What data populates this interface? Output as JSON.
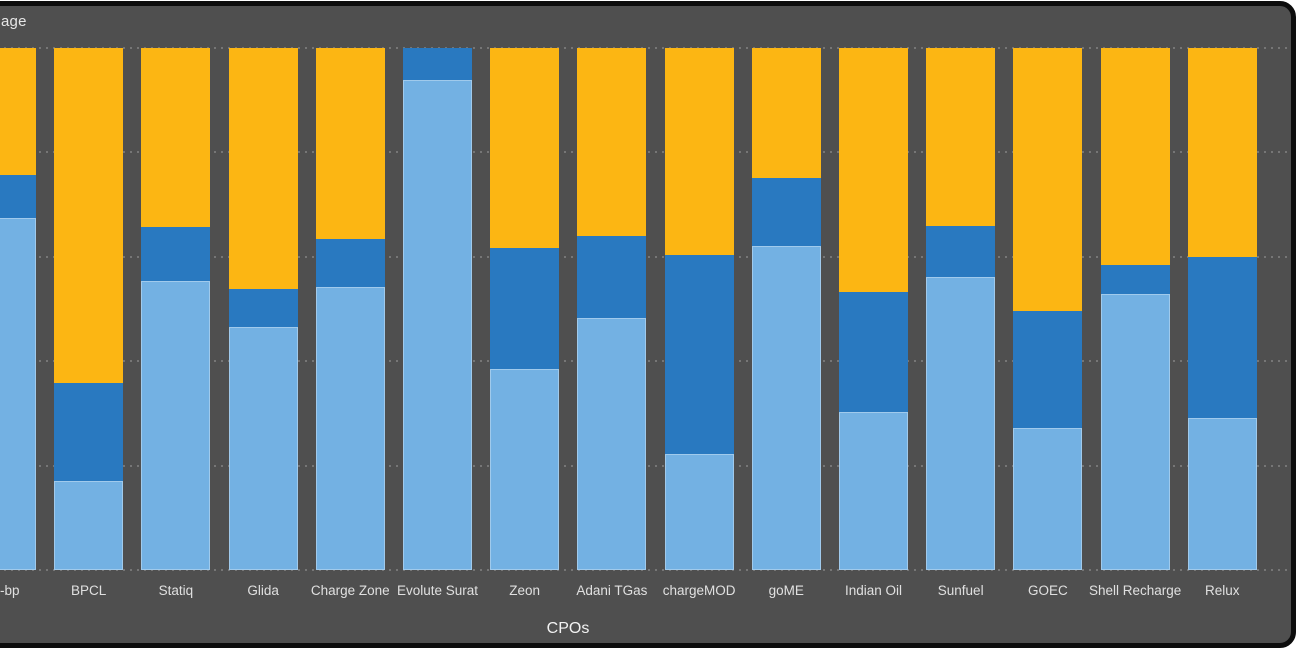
{
  "window": {
    "title_fragment": "age"
  },
  "colors": {
    "card_background": "#4f4f4f",
    "card_frame": "#0d0d0d",
    "page_background": "#ffffff",
    "light_blue": "#73b1e3",
    "dark_blue": "#2979c0",
    "orange": "#fcb613",
    "label_text": "#e0e0e0"
  },
  "chart_data": {
    "type": "bar",
    "stacked": true,
    "orientation": "vertical",
    "title_fragment": "age",
    "xlabel": "CPOs",
    "ylim": [
      0,
      100
    ],
    "y_unit": "percent",
    "grid": {
      "style": "dotted",
      "values": [
        0,
        20,
        40,
        60,
        80,
        100
      ]
    },
    "categories": [
      "-bp",
      "BPCL",
      "Statiq",
      "Glida",
      "Charge Zone",
      "Evolute Surat",
      "Zeon",
      "Adani TGas",
      "chargeMOD",
      "goME",
      "Indian Oil",
      "Sunfuel",
      "GOEC",
      "Shell Recharge",
      "Relux"
    ],
    "series": [
      {
        "name": "light-blue-segment",
        "color": "#73b1e3",
        "values": [
          67.5,
          17.0,
          55.4,
          46.6,
          54.3,
          93.9,
          38.5,
          48.2,
          22.2,
          62.0,
          30.2,
          56.2,
          27.2,
          52.8,
          29.1
        ]
      },
      {
        "name": "dark-blue-segment",
        "color": "#2979c0",
        "values": [
          8.2,
          18.8,
          10.4,
          7.3,
          9.2,
          6.1,
          23.1,
          15.7,
          38.2,
          13.2,
          23.0,
          9.8,
          22.5,
          5.7,
          30.9
        ]
      },
      {
        "name": "orange-segment",
        "color": "#fcb613",
        "values": [
          24.3,
          64.2,
          34.2,
          46.1,
          36.5,
          0.0,
          38.4,
          36.1,
          39.6,
          24.8,
          46.8,
          34.0,
          50.3,
          41.5,
          40.0
        ]
      }
    ]
  }
}
